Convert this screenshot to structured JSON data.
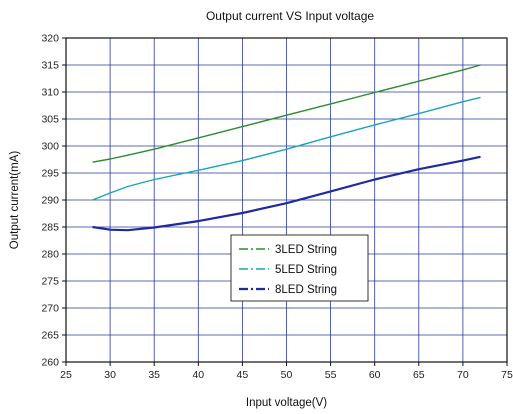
{
  "chart_data": {
    "type": "line",
    "title": "Output current VS Input voltage",
    "xlabel": "Input voltage(V)",
    "ylabel": "Output current(mA)",
    "xlim": [
      25,
      75
    ],
    "ylim": [
      260,
      320
    ],
    "xticks": [
      25,
      30,
      35,
      40,
      45,
      50,
      55,
      60,
      65,
      70,
      75
    ],
    "yticks": [
      260,
      265,
      270,
      275,
      280,
      285,
      290,
      295,
      300,
      305,
      310,
      315,
      320
    ],
    "grid": true,
    "legend_position": "center",
    "series": [
      {
        "name": "3LED String",
        "color": "#2e8b2e",
        "x": [
          28,
          30,
          32,
          35,
          40,
          45,
          50,
          55,
          60,
          65,
          70,
          72
        ],
        "y": [
          297,
          297.6,
          298.3,
          299.4,
          301.5,
          303.6,
          305.7,
          307.8,
          309.9,
          312,
          314.1,
          315
        ]
      },
      {
        "name": "5LED String",
        "color": "#1aa3b8",
        "x": [
          28,
          30,
          32,
          35,
          40,
          45,
          50,
          55,
          60,
          65,
          70,
          72
        ],
        "y": [
          290,
          291.3,
          292.5,
          293.8,
          295.5,
          297.3,
          299.4,
          301.7,
          303.9,
          306,
          308.2,
          309
        ]
      },
      {
        "name": "8LED String",
        "color": "#1f2a9e",
        "x": [
          28,
          30,
          32,
          35,
          40,
          45,
          50,
          55,
          60,
          65,
          70,
          72
        ],
        "y": [
          285,
          284.5,
          284.4,
          284.9,
          286.1,
          287.6,
          289.4,
          291.6,
          293.8,
          295.7,
          297.3,
          298
        ]
      }
    ]
  }
}
